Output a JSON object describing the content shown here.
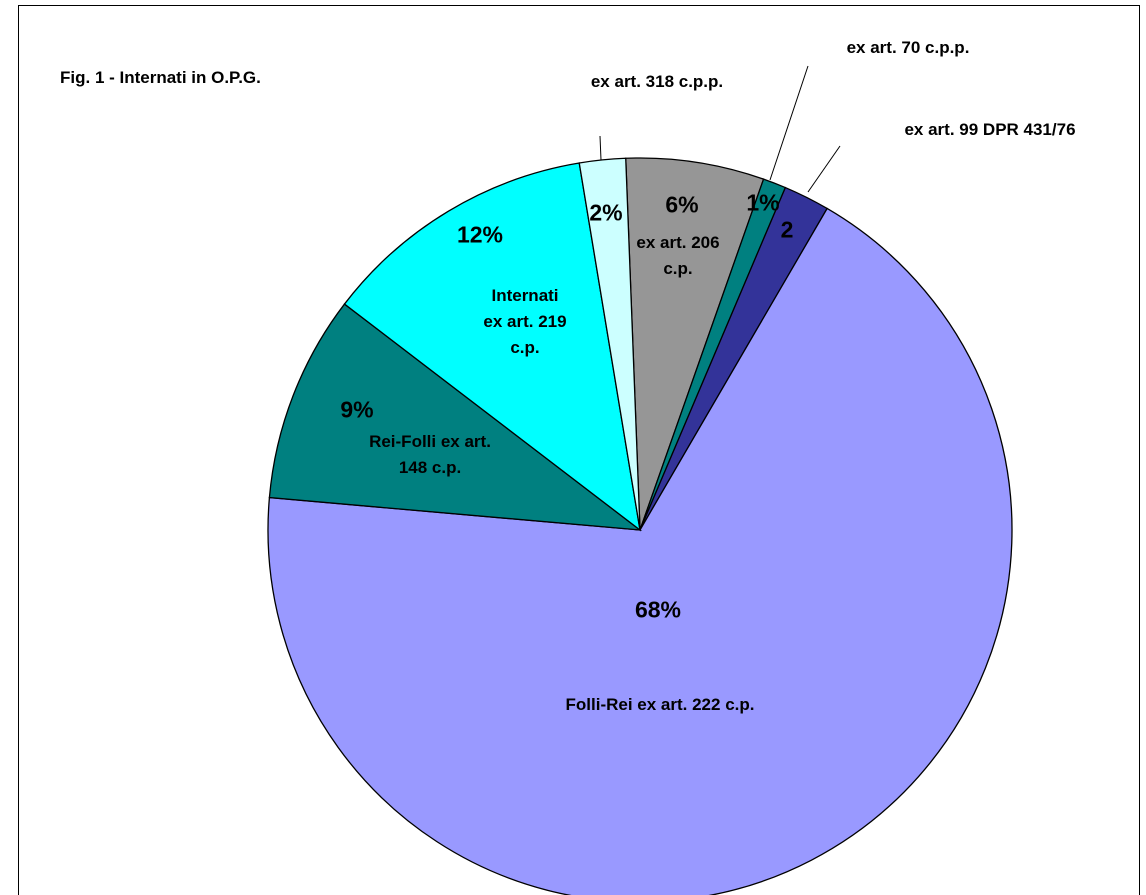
{
  "chart_data": {
    "type": "pie",
    "title": "Fig. 1 - Internati in O.P.G.",
    "categories": [
      "ex art. 206 c.p.",
      "ex art. 70 c.p.p.",
      "ex art. 99 DPR 431/76",
      "Folli-Rei ex art. 222 c.p.",
      "Rei-Folli ex art. 148 c.p.",
      "Internati ex art. 219 c.p.",
      "ex art. 318 c.p.p."
    ],
    "values": [
      6,
      1,
      2,
      68,
      9,
      12,
      2
    ],
    "value_labels": [
      "6%",
      "1%",
      "2",
      "68%",
      "9%",
      "12%",
      "2%"
    ],
    "colors": [
      "#969696",
      "#008080",
      "#333399",
      "#9999ff",
      "#008080",
      "#00ffff",
      "#ccffff"
    ]
  }
}
